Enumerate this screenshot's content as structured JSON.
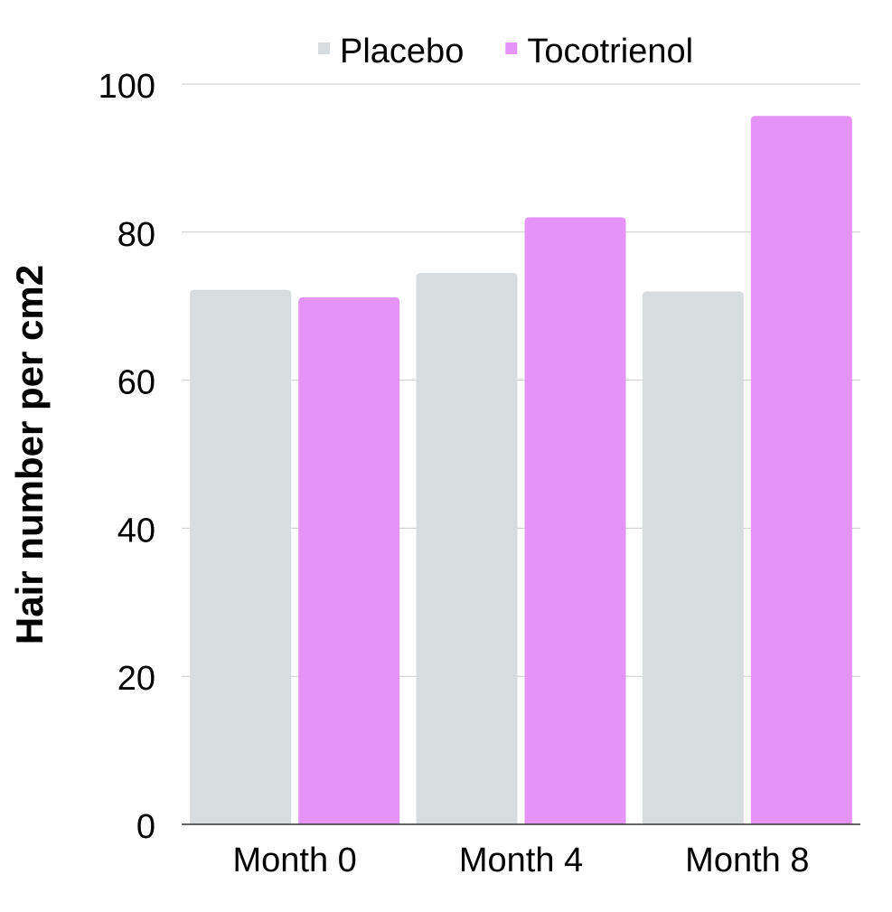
{
  "chart_data": {
    "type": "bar",
    "title": "",
    "xlabel": "",
    "ylabel": "Hair number per cm2",
    "categories": [
      "Month 0",
      "Month 4",
      "Month 8"
    ],
    "series": [
      {
        "name": "Placebo",
        "color": "#d7dddf",
        "values": [
          72.2,
          74.5,
          72.0
        ]
      },
      {
        "name": "Tocotrienol",
        "color": "#e693f8",
        "values": [
          71.2,
          82.0,
          95.7
        ]
      }
    ],
    "ylim": [
      0,
      100
    ],
    "yticks": [
      0,
      20,
      40,
      60,
      80,
      100
    ],
    "grid": true,
    "legend_position": "top-center"
  }
}
